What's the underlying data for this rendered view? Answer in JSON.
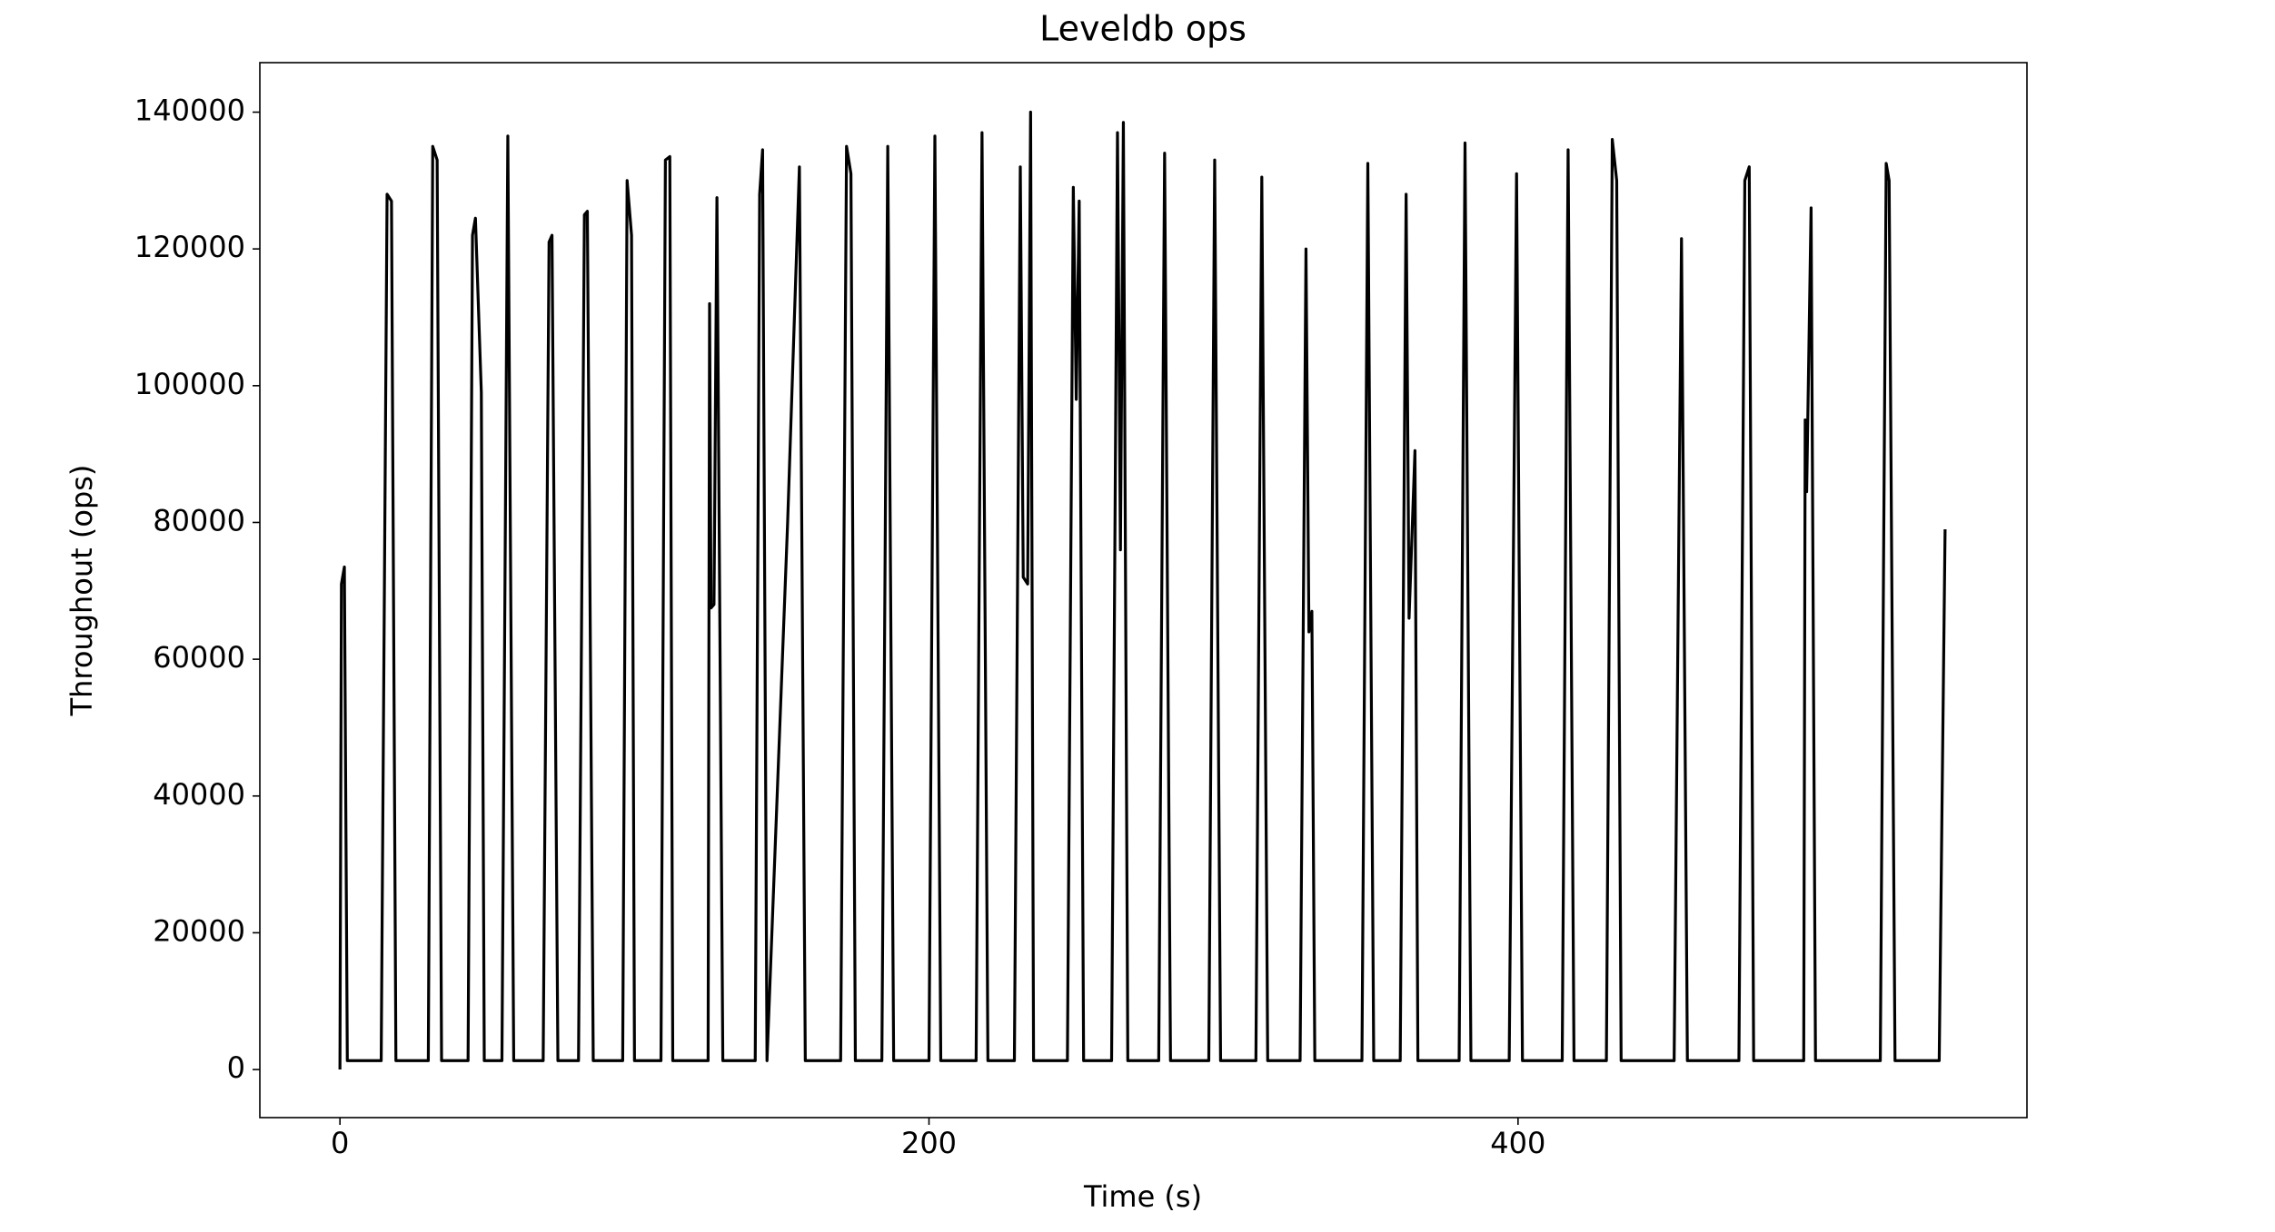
{
  "chart_data": {
    "type": "line",
    "title": "Leveldb ops",
    "x_label": "Time (s)",
    "y_label": "Throughout (ops)",
    "color": "#000000",
    "grid": false,
    "x": [
      0,
      0.5,
      1.5,
      2.5,
      14,
      16,
      17.5,
      19,
      30,
      31.5,
      33,
      34.5,
      43.5,
      45,
      46,
      48,
      49,
      55,
      57,
      59,
      69,
      71,
      72,
      74,
      81,
      83,
      84,
      86,
      96,
      97.5,
      99,
      100,
      109,
      110.5,
      112,
      113,
      125,
      125.5,
      126,
      127,
      128,
      130,
      141,
      142.5,
      143.5,
      145,
      152,
      156,
      158,
      170,
      172,
      173.5,
      175,
      184,
      186,
      188,
      200,
      202,
      204,
      216,
      218,
      220,
      229,
      231,
      232,
      233.5,
      234.5,
      235.5,
      247,
      249,
      250,
      251,
      252.5,
      262,
      264,
      265,
      266,
      267.5,
      278,
      280,
      282,
      295,
      297,
      299,
      311,
      313,
      315,
      326,
      328,
      329,
      330,
      331,
      347,
      349,
      351,
      360,
      362,
      363,
      365,
      366,
      380,
      382,
      384,
      397,
      399.5,
      401.5,
      415,
      417,
      419,
      430,
      432,
      433.5,
      435,
      453,
      455.5,
      457.5,
      475,
      477,
      478.5,
      480,
      497,
      497.5,
      498,
      499.5,
      501,
      523,
      525,
      526,
      528,
      543,
      545
    ],
    "values": [
      0,
      71000,
      73500,
      1300,
      1300,
      128000,
      127000,
      1300,
      1300,
      135000,
      133000,
      1300,
      1300,
      122000,
      124500,
      99000,
      1300,
      1300,
      136500,
      1300,
      1300,
      121000,
      122000,
      1300,
      1300,
      125000,
      125500,
      1300,
      1300,
      130000,
      122000,
      1300,
      1300,
      133000,
      133500,
      1300,
      1300,
      112000,
      67500,
      68000,
      127500,
      1300,
      1300,
      128000,
      134500,
      1300,
      80000,
      132000,
      1300,
      1300,
      135000,
      131000,
      1300,
      1300,
      135000,
      1300,
      1300,
      136500,
      1300,
      1300,
      137000,
      1300,
      1300,
      132000,
      72000,
      71000,
      140000,
      1300,
      1300,
      129000,
      98000,
      127000,
      1300,
      1300,
      137000,
      76000,
      138500,
      1300,
      1300,
      134000,
      1300,
      1300,
      133000,
      1300,
      1300,
      130500,
      1300,
      1300,
      120000,
      64000,
      67000,
      1300,
      1300,
      132500,
      1300,
      1300,
      128000,
      66000,
      90500,
      1300,
      1300,
      135500,
      1300,
      1300,
      131000,
      1300,
      1300,
      134500,
      1300,
      1300,
      136000,
      130000,
      1300,
      1300,
      121500,
      1300,
      1300,
      130000,
      132000,
      1300,
      1300,
      95000,
      84500,
      126000,
      1300,
      1300,
      132500,
      130000,
      1300,
      1300,
      79000
    ],
    "xlim": [
      -27.2,
      572.8
    ],
    "ylim": [
      -7030,
      147240
    ],
    "xticks": [
      0,
      200,
      400
    ],
    "yticks": [
      0,
      20000,
      40000,
      60000,
      80000,
      100000,
      120000,
      140000
    ]
  }
}
